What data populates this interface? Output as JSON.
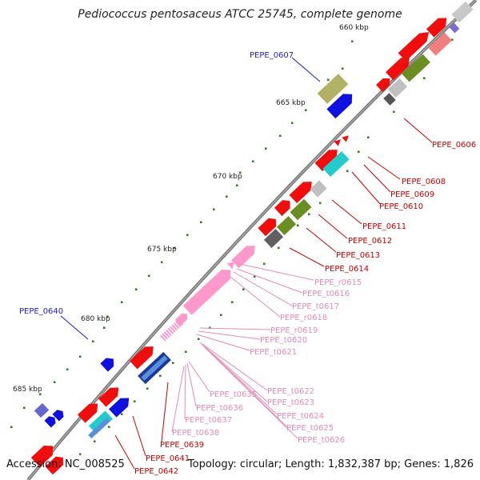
{
  "title": "Pediococcus pentosaceus ATCC 25745, complete genome",
  "accession": "Accession: NC_008525",
  "summary": "Topology: circular; Length: 1,832,387 bp; Genes: 1,826",
  "colors": {
    "gene_red": "#f20d0d",
    "rna_pink": "#ff99cc",
    "label_blue": "#1c1ccf",
    "label_red": "#cc0000",
    "label_pink": "#e68ab8",
    "tick_green": "#2c7a16",
    "backbone": "#777777"
  },
  "ticks": [
    "660 kbp",
    "665 kbp",
    "670 kbp",
    "675 kbp",
    "680 kbp",
    "685 kbp"
  ],
  "labels": {
    "blue": [
      "PEPE_0607",
      "PEPE_0640"
    ],
    "red": [
      "PEPE_0606",
      "PEPE_0608",
      "PEPE_0609",
      "PEPE_0610",
      "PEPE_0611",
      "PEPE_0612",
      "PEPE_0613",
      "PEPE_0614",
      "PEPE_0639",
      "PEPE_0641",
      "PEPE_0642"
    ],
    "pink": [
      "PEPE_r0615",
      "PEPE_t0616",
      "PEPE_t0617",
      "PEPE_r0618",
      "PEPE_r0619",
      "PEPE_t0620",
      "PEPE_t0621",
      "PEPE_t0622",
      "PEPE_t0623",
      "PEPE_t0624",
      "PEPE_t0625",
      "PEPE_t0626",
      "PEPE_t0635",
      "PEPE_t0636",
      "PEPE_t0637",
      "PEPE_t0638"
    ]
  }
}
